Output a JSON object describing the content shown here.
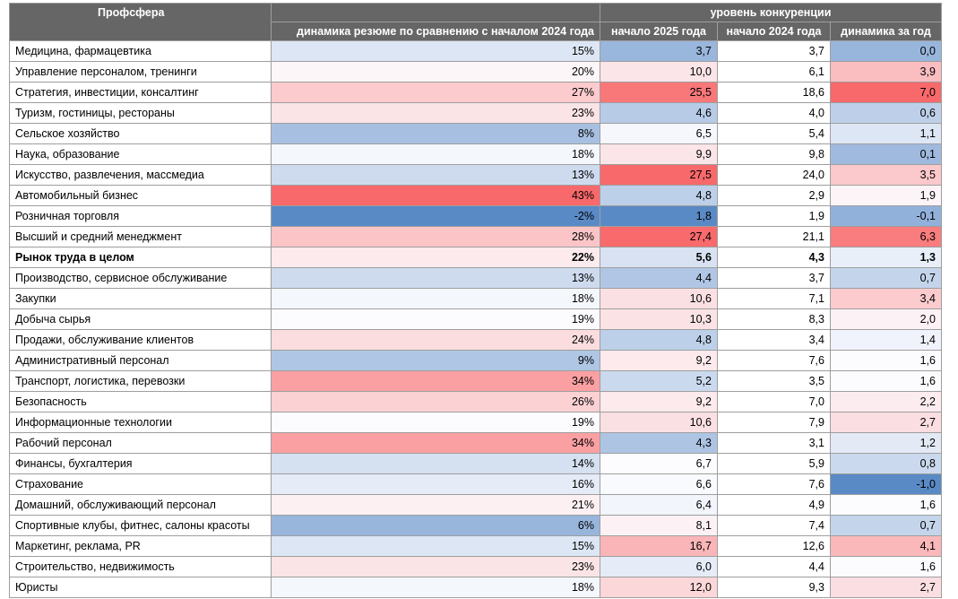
{
  "header": {
    "profsfera": "Профсфера",
    "resume_dynamics": "динамика резюме по сравнению с началом 2024 года",
    "competition_level": "уровень конкуренции",
    "start_2025": "начало 2025 года",
    "start_2024": "начало 2024 года",
    "dynamics_year": "динамика за год"
  },
  "colors": {
    "header_bg": "#666666",
    "high_red": "#f8696b",
    "low_blue": "#5a8ac6",
    "neutral": "#fcfcff"
  },
  "rows": [
    {
      "name": "Медицина, фармацевтика",
      "resume_dyn": "15%",
      "comp_2025": "3,7",
      "comp_2024": "3,7",
      "comp_dyn": "0,0"
    },
    {
      "name": "Управление персоналом, тренинги",
      "resume_dyn": "20%",
      "comp_2025": "10,0",
      "comp_2024": "6,1",
      "comp_dyn": "3,9"
    },
    {
      "name": "Стратегия, инвестиции, консалтинг",
      "resume_dyn": "27%",
      "comp_2025": "25,5",
      "comp_2024": "18,6",
      "comp_dyn": "7,0"
    },
    {
      "name": "Туризм, гостиницы, рестораны",
      "resume_dyn": "23%",
      "comp_2025": "4,6",
      "comp_2024": "4,0",
      "comp_dyn": "0,6"
    },
    {
      "name": "Сельское хозяйство",
      "resume_dyn": "8%",
      "comp_2025": "6,5",
      "comp_2024": "5,4",
      "comp_dyn": "1,1"
    },
    {
      "name": "Наука, образование",
      "resume_dyn": "18%",
      "comp_2025": "9,9",
      "comp_2024": "9,8",
      "comp_dyn": "0,1"
    },
    {
      "name": "Искусство, развлечения, массмедиа",
      "resume_dyn": "13%",
      "comp_2025": "27,5",
      "comp_2024": "24,0",
      "comp_dyn": "3,5"
    },
    {
      "name": "Автомобильный бизнес",
      "resume_dyn": "43%",
      "comp_2025": "4,8",
      "comp_2024": "2,9",
      "comp_dyn": "1,9"
    },
    {
      "name": "Розничная торговля",
      "resume_dyn": "-2%",
      "comp_2025": "1,8",
      "comp_2024": "1,9",
      "comp_dyn": "-0,1"
    },
    {
      "name": "Высший и средний менеджмент",
      "resume_dyn": "28%",
      "comp_2025": "27,4",
      "comp_2024": "21,1",
      "comp_dyn": "6,3"
    },
    {
      "name": "Рынок труда в целом",
      "resume_dyn": "22%",
      "comp_2025": "5,6",
      "comp_2024": "4,3",
      "comp_dyn": "1,3",
      "total": true
    },
    {
      "name": "Производство, сервисное обслуживание",
      "resume_dyn": "13%",
      "comp_2025": "4,4",
      "comp_2024": "3,7",
      "comp_dyn": "0,7"
    },
    {
      "name": "Закупки",
      "resume_dyn": "18%",
      "comp_2025": "10,6",
      "comp_2024": "7,1",
      "comp_dyn": "3,4"
    },
    {
      "name": "Добыча сырья",
      "resume_dyn": "19%",
      "comp_2025": "10,3",
      "comp_2024": "8,3",
      "comp_dyn": "2,0"
    },
    {
      "name": "Продажи, обслуживание клиентов",
      "resume_dyn": "24%",
      "comp_2025": "4,8",
      "comp_2024": "3,4",
      "comp_dyn": "1,4"
    },
    {
      "name": "Административный персонал",
      "resume_dyn": "9%",
      "comp_2025": "9,2",
      "comp_2024": "7,6",
      "comp_dyn": "1,6"
    },
    {
      "name": "Транспорт, логистика, перевозки",
      "resume_dyn": "34%",
      "comp_2025": "5,2",
      "comp_2024": "3,5",
      "comp_dyn": "1,6"
    },
    {
      "name": "Безопасность",
      "resume_dyn": "26%",
      "comp_2025": "9,2",
      "comp_2024": "7,0",
      "comp_dyn": "2,2"
    },
    {
      "name": "Информационные технологии",
      "resume_dyn": "19%",
      "comp_2025": "10,6",
      "comp_2024": "7,9",
      "comp_dyn": "2,7"
    },
    {
      "name": "Рабочий персонал",
      "resume_dyn": "34%",
      "comp_2025": "4,3",
      "comp_2024": "3,1",
      "comp_dyn": "1,2"
    },
    {
      "name": "Финансы, бухгалтерия",
      "resume_dyn": "14%",
      "comp_2025": "6,7",
      "comp_2024": "5,9",
      "comp_dyn": "0,8"
    },
    {
      "name": "Страхование",
      "resume_dyn": "16%",
      "comp_2025": "6,6",
      "comp_2024": "7,6",
      "comp_dyn": "-1,0"
    },
    {
      "name": "Домашний, обслуживающий персонал",
      "resume_dyn": "21%",
      "comp_2025": "6,4",
      "comp_2024": "4,9",
      "comp_dyn": "1,6"
    },
    {
      "name": "Спортивные клубы, фитнес, салоны красоты",
      "resume_dyn": "6%",
      "comp_2025": "8,1",
      "comp_2024": "7,4",
      "comp_dyn": "0,7"
    },
    {
      "name": "Маркетинг, реклама, PR",
      "resume_dyn": "15%",
      "comp_2025": "16,7",
      "comp_2024": "12,6",
      "comp_dyn": "4,1"
    },
    {
      "name": "Строительство, недвижимость",
      "resume_dyn": "23%",
      "comp_2025": "6,0",
      "comp_2024": "4,4",
      "comp_dyn": "1,6"
    },
    {
      "name": "Юристы",
      "resume_dyn": "18%",
      "comp_2025": "12,0",
      "comp_2024": "9,3",
      "comp_dyn": "2,7"
    }
  ],
  "chart_data": {
    "type": "table",
    "columns": [
      "Профсфера",
      "динамика резюме по сравнению с началом 2024 года",
      "начало 2025 года",
      "начало 2024 года",
      "динамика за год"
    ],
    "column_group": "уровень конкуренции",
    "heatmap_columns": [
      "resume_dyn",
      "comp_2025",
      "comp_dyn"
    ],
    "values": {
      "resume_dyn": [
        15,
        20,
        27,
        23,
        8,
        18,
        13,
        43,
        -2,
        28,
        22,
        13,
        18,
        19,
        24,
        9,
        34,
        26,
        19,
        34,
        14,
        16,
        21,
        6,
        15,
        23,
        18
      ],
      "comp_2025": [
        3.7,
        10.0,
        25.5,
        4.6,
        6.5,
        9.9,
        27.5,
        4.8,
        1.8,
        27.4,
        5.6,
        4.4,
        10.6,
        10.3,
        4.8,
        9.2,
        5.2,
        9.2,
        10.6,
        4.3,
        6.7,
        6.6,
        6.4,
        8.1,
        16.7,
        6.0,
        12.0
      ],
      "comp_2024": [
        3.7,
        6.1,
        18.6,
        4.0,
        5.4,
        9.8,
        24.0,
        2.9,
        1.9,
        21.1,
        4.3,
        3.7,
        7.1,
        8.3,
        3.4,
        7.6,
        3.5,
        7.0,
        7.9,
        3.1,
        5.9,
        7.6,
        4.9,
        7.4,
        12.6,
        4.4,
        9.3
      ],
      "comp_dyn": [
        0.0,
        3.9,
        7.0,
        0.6,
        1.1,
        0.1,
        3.5,
        1.9,
        -0.1,
        6.3,
        1.3,
        0.7,
        3.4,
        2.0,
        1.4,
        1.6,
        1.6,
        2.2,
        2.7,
        1.2,
        0.8,
        -1.0,
        1.6,
        0.7,
        4.1,
        1.6,
        2.7
      ]
    }
  }
}
